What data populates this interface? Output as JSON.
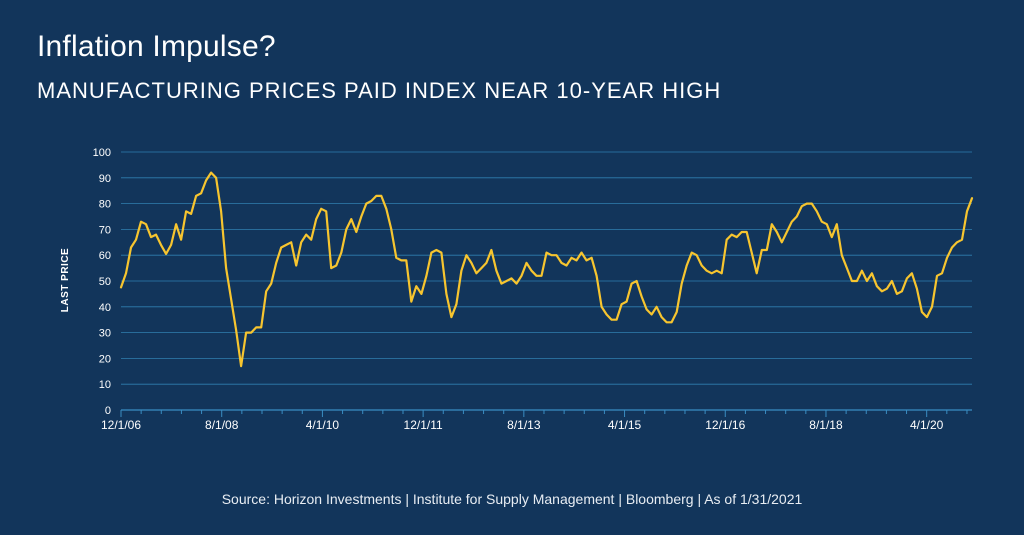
{
  "chart_data": {
    "type": "line",
    "title": "Inflation Impulse?",
    "subtitle": "MANUFACTURING PRICES PAID INDEX NEAR 10-YEAR HIGH",
    "xlabel": "",
    "ylabel": "LAST PRICE",
    "ylim": [
      0,
      100
    ],
    "y_ticks": [
      0,
      10,
      20,
      30,
      40,
      50,
      60,
      70,
      80,
      90,
      100
    ],
    "x_tick_labels": [
      "12/1/06",
      "8/1/08",
      "4/1/10",
      "12/1/11",
      "8/1/13",
      "4/1/15",
      "12/1/16",
      "8/1/18",
      "4/1/20"
    ],
    "x_start": "2006-12",
    "x_end": "2021-01",
    "grid": true,
    "line_color": "#f7c52f",
    "series": [
      {
        "name": "",
        "values": [
          47.5,
          53,
          63,
          66,
          73,
          72,
          67,
          68,
          64,
          60.5,
          64,
          72,
          66,
          77,
          76,
          83,
          84,
          89,
          92,
          90,
          77,
          55,
          43,
          31,
          17,
          30,
          30,
          32,
          32,
          46,
          49,
          57,
          63,
          64,
          65,
          56,
          65,
          68,
          66,
          74,
          78,
          77,
          55,
          56,
          61,
          70,
          74,
          69,
          75,
          80,
          81,
          83,
          83,
          78,
          70,
          59,
          58,
          58,
          42,
          48,
          45,
          52,
          61,
          62,
          61,
          45,
          36,
          41,
          54,
          60,
          57,
          53,
          55,
          57,
          62,
          54,
          49,
          50,
          51,
          49,
          52,
          57,
          54,
          52,
          52,
          61,
          60,
          60,
          57,
          56,
          59,
          58,
          61,
          58,
          59,
          52,
          40,
          37,
          35,
          35,
          41,
          42,
          49,
          50,
          44,
          39,
          37,
          40,
          36,
          34,
          34,
          38,
          49,
          56,
          61,
          60,
          56,
          54,
          53,
          54,
          53,
          66,
          68,
          67,
          69,
          69,
          61,
          53,
          62,
          62,
          72,
          69,
          65,
          69,
          73,
          75,
          79,
          80,
          80,
          77,
          73,
          72,
          67,
          72,
          60,
          55,
          50,
          50,
          54,
          50,
          53,
          48,
          46,
          47,
          50,
          45,
          46,
          51,
          53,
          47,
          38,
          36,
          40,
          52,
          53,
          59,
          63,
          65,
          66,
          77,
          82.1
        ]
      }
    ]
  },
  "source_text": "Source: Horizon Investments |  Institute for Supply Management | Bloomberg | As of 1/31/2021"
}
